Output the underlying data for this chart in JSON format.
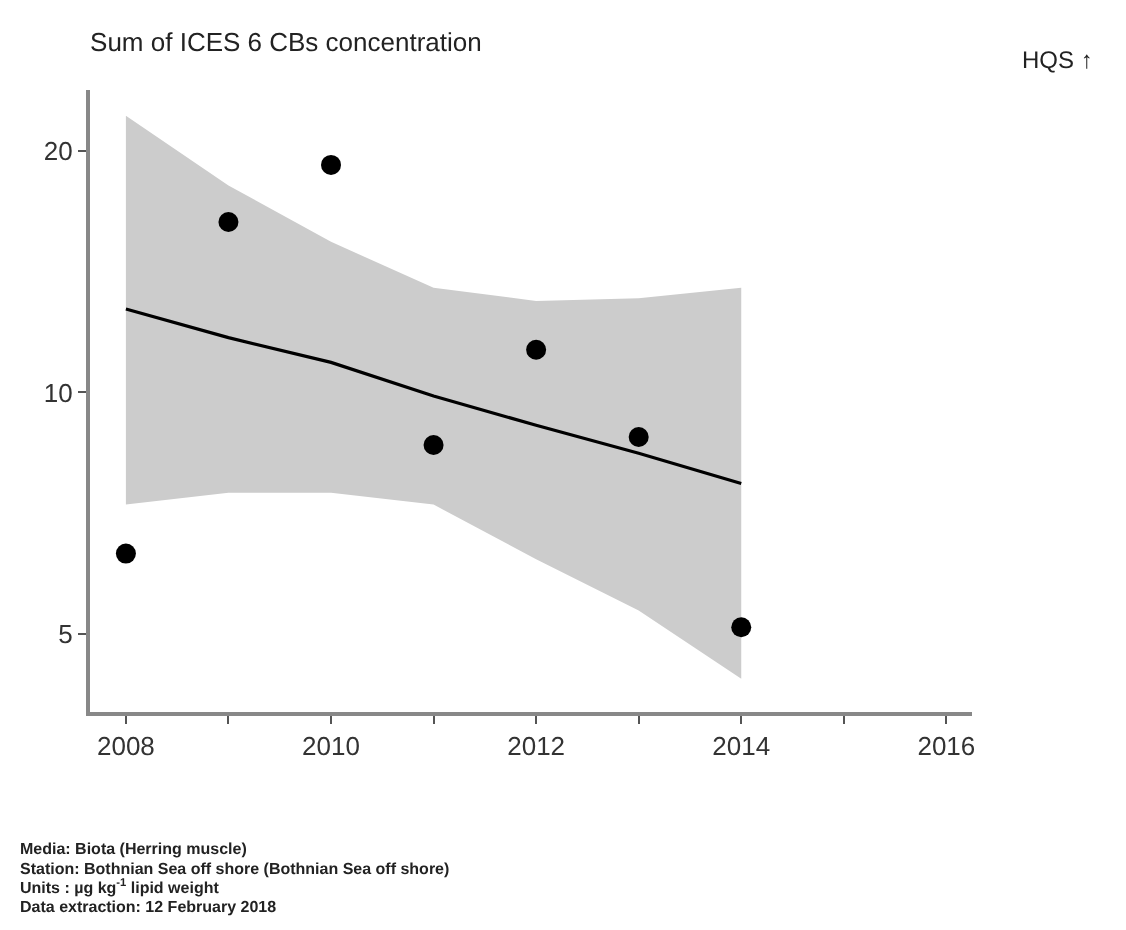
{
  "chart_data": {
    "type": "scatter",
    "title": "Sum of ICES 6 CBs concentration",
    "x": [
      2008,
      2009,
      2010,
      2011,
      2012,
      2013,
      2014
    ],
    "series": [
      {
        "color": "#000000",
        "marker": "circle",
        "values": [
          6.3,
          16.3,
          19.2,
          8.6,
          11.3,
          8.8,
          5.1
        ]
      },
      {
        "type": "line",
        "color": "#000000",
        "line_style": "solid",
        "values": [
          12.7,
          11.7,
          10.9,
          9.9,
          9.1,
          8.4,
          7.7
        ],
        "lower": [
          7.25,
          7.5,
          7.5,
          7.25,
          6.2,
          5.35,
          4.4
        ],
        "upper": [
          22.1,
          18.1,
          15.4,
          13.5,
          13.0,
          13.1,
          13.5
        ]
      }
    ],
    "log": "y",
    "xlim": [
      2007.65,
      2016.25
    ],
    "xticks": [
      2008,
      {
        "value": 2009,
        "label": null
      },
      2010,
      {
        "value": 2011,
        "label": null
      },
      2012,
      {
        "value": 2013,
        "label": null
      },
      2014,
      {
        "value": 2015,
        "label": null
      },
      2016
    ],
    "ylim": [
      4.0,
      23.8
    ],
    "yticks": [
      5,
      10,
      20
    ],
    "annotations": [
      "HQS ↑",
      "Media: Biota (Herring muscle)",
      "Station: Bothnian Sea off shore (Bothnian Sea off shore)",
      "Units : µg kg$^{-1}$ lipid weight",
      "Data extraction: 12 February 2018"
    ]
  }
}
